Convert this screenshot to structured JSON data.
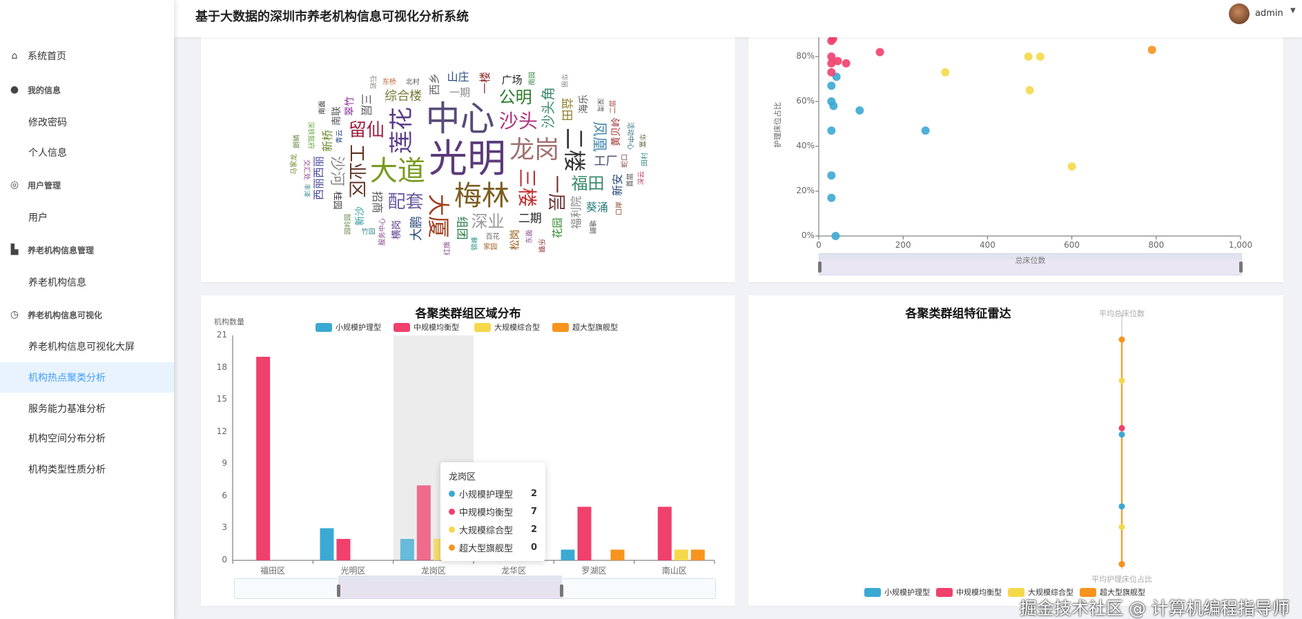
{
  "header": {
    "title": "基于大数据的深圳市养老机构信息可视化分析系统",
    "user": "admin"
  },
  "sidebar": {
    "items": [
      {
        "label": "系统首页",
        "icon": "home-icon",
        "type": "item"
      },
      {
        "label": "我的信息",
        "icon": "user-icon",
        "type": "group"
      },
      {
        "label": "修改密码",
        "type": "sub"
      },
      {
        "label": "个人信息",
        "type": "sub"
      },
      {
        "label": "用户管理",
        "icon": "user-circle-icon",
        "type": "group"
      },
      {
        "label": "用户",
        "type": "sub"
      },
      {
        "label": "养老机构信息管理",
        "icon": "building-icon",
        "type": "group"
      },
      {
        "label": "养老机构信息",
        "type": "sub"
      },
      {
        "label": "养老机构信息可视化",
        "icon": "clock-icon",
        "type": "group"
      },
      {
        "label": "养老机构信息可视化大屏",
        "type": "sub"
      },
      {
        "label": "机构热点聚类分析",
        "type": "sub",
        "active": true
      },
      {
        "label": "服务能力基准分析",
        "type": "sub"
      },
      {
        "label": "机构空间分布分析",
        "type": "sub"
      },
      {
        "label": "机构类型性质分析",
        "type": "sub"
      }
    ]
  },
  "colors": {
    "small": "#3ba9d3",
    "medium": "#f0406c",
    "large": "#f5d84a",
    "xl": "#f7941d",
    "accent": "#409eff"
  },
  "wordcloud": {
    "words": [
      "光明",
      "中心",
      "梅林",
      "大道",
      "龙岗",
      "莲花",
      "三楼",
      "沙头",
      "二楼",
      "大厦",
      "工业区",
      "一层",
      "配套",
      "留仙",
      "沙头角",
      "深业",
      "公明",
      "福田",
      "沙河",
      "招商",
      "综合楼",
      "二期",
      "凤凰",
      "组团",
      "益田",
      "大鹏",
      "一期",
      "新桥",
      "三层",
      "西乡",
      "一楼",
      "工厂",
      "西丽西丽",
      "福利院",
      "横岗",
      "新沙",
      "桂园",
      "南联",
      "山庄",
      "翠竹",
      "广场",
      "黄贝岭",
      "海乐",
      "新安",
      "葵涌",
      "花园",
      "松岗",
      "服务中心",
      "百花",
      "北村",
      "青云",
      "蛇口",
      "东面",
      "交汇处",
      "深铁懿府",
      "锦峰",
      "活动中心",
      "南园",
      "深湾",
      "东桥",
      "首层",
      "园岭园",
      "红旗",
      "丰泽",
      "马家龙",
      "朗鳞",
      "南面",
      "石岩",
      "华丽",
      "二层",
      "华富",
      "田村",
      "深云",
      "家园",
      "口岸",
      "塘朗",
      "乐钢",
      "竹园"
    ]
  },
  "chart_data": [
    {
      "type": "scatter",
      "xlabel": "总床位数",
      "ylabel": "护理床位占比",
      "xlim": [
        0,
        1000
      ],
      "xticks": [
        "0",
        "200",
        "400",
        "600",
        "800",
        "1,000"
      ],
      "yticks": [
        "0%",
        "20%",
        "40%",
        "60%",
        "80%"
      ],
      "series": [
        {
          "color": "#3ba9d3",
          "points": [
            [
              30,
              67
            ],
            [
              30,
              60
            ],
            [
              35,
              58
            ],
            [
              42,
              71
            ],
            [
              97,
              56
            ],
            [
              30,
              47
            ],
            [
              253,
              47
            ],
            [
              30,
              27
            ],
            [
              30,
              17
            ],
            [
              40,
              0
            ]
          ]
        },
        {
          "color": "#f0406c",
          "points": [
            [
              30,
              87
            ],
            [
              34,
              88
            ],
            [
              30,
              80
            ],
            [
              30,
              77
            ],
            [
              45,
              78
            ],
            [
              65,
              77
            ],
            [
              30,
              73
            ],
            [
              145,
              82
            ]
          ]
        },
        {
          "color": "#f5d84a",
          "points": [
            [
              497,
              80
            ],
            [
              525,
              80
            ],
            [
              300,
              73
            ],
            [
              500,
              65
            ],
            [
              600,
              31
            ]
          ]
        },
        {
          "color": "#f7941d",
          "points": [
            [
              790,
              83
            ]
          ]
        }
      ]
    },
    {
      "type": "bar",
      "title": "各聚类群组区域分布",
      "ylabel": "机构数量",
      "ylim": [
        0,
        21
      ],
      "yticks": [
        "0",
        "3",
        "6",
        "9",
        "12",
        "15",
        "18",
        "21"
      ],
      "categories": [
        "福田区",
        "光明区",
        "龙岗区",
        "龙华区",
        "罗湖区",
        "南山区"
      ],
      "series": [
        {
          "name": "小规模护理型",
          "color": "#3ba9d3",
          "values": [
            0,
            3,
            2,
            1,
            1,
            0
          ]
        },
        {
          "name": "中规模均衡型",
          "color": "#f0406c",
          "values": [
            19,
            2,
            7,
            1,
            5,
            5
          ]
        },
        {
          "name": "大规模综合型",
          "color": "#f5d84a",
          "values": [
            0,
            0,
            2,
            0,
            0,
            1
          ]
        },
        {
          "name": "超大型旗舰型",
          "color": "#f7941d",
          "values": [
            0,
            0,
            0,
            1,
            1,
            1
          ]
        }
      ],
      "tooltip": {
        "category": "龙岗区",
        "highlight_index": 2
      }
    },
    {
      "type": "radar",
      "title": "各聚类群组特征雷达",
      "indicators": [
        "平均总床位数",
        "平均护理床位占比"
      ],
      "series": [
        {
          "name": "小规模护理型",
          "color": "#3ba9d3",
          "values": [
            0.05,
            0.51
          ]
        },
        {
          "name": "中规模均衡型",
          "color": "#f0406c",
          "values": [
            0.1,
            0.96
          ]
        },
        {
          "name": "大规模综合型",
          "color": "#f5d84a",
          "values": [
            0.47,
            0.67
          ]
        },
        {
          "name": "超大型旗舰型",
          "color": "#f7941d",
          "values": [
            0.79,
            0.96
          ]
        }
      ]
    }
  ],
  "watermark": "掘金技术社区 @ 计算机编程指导师"
}
